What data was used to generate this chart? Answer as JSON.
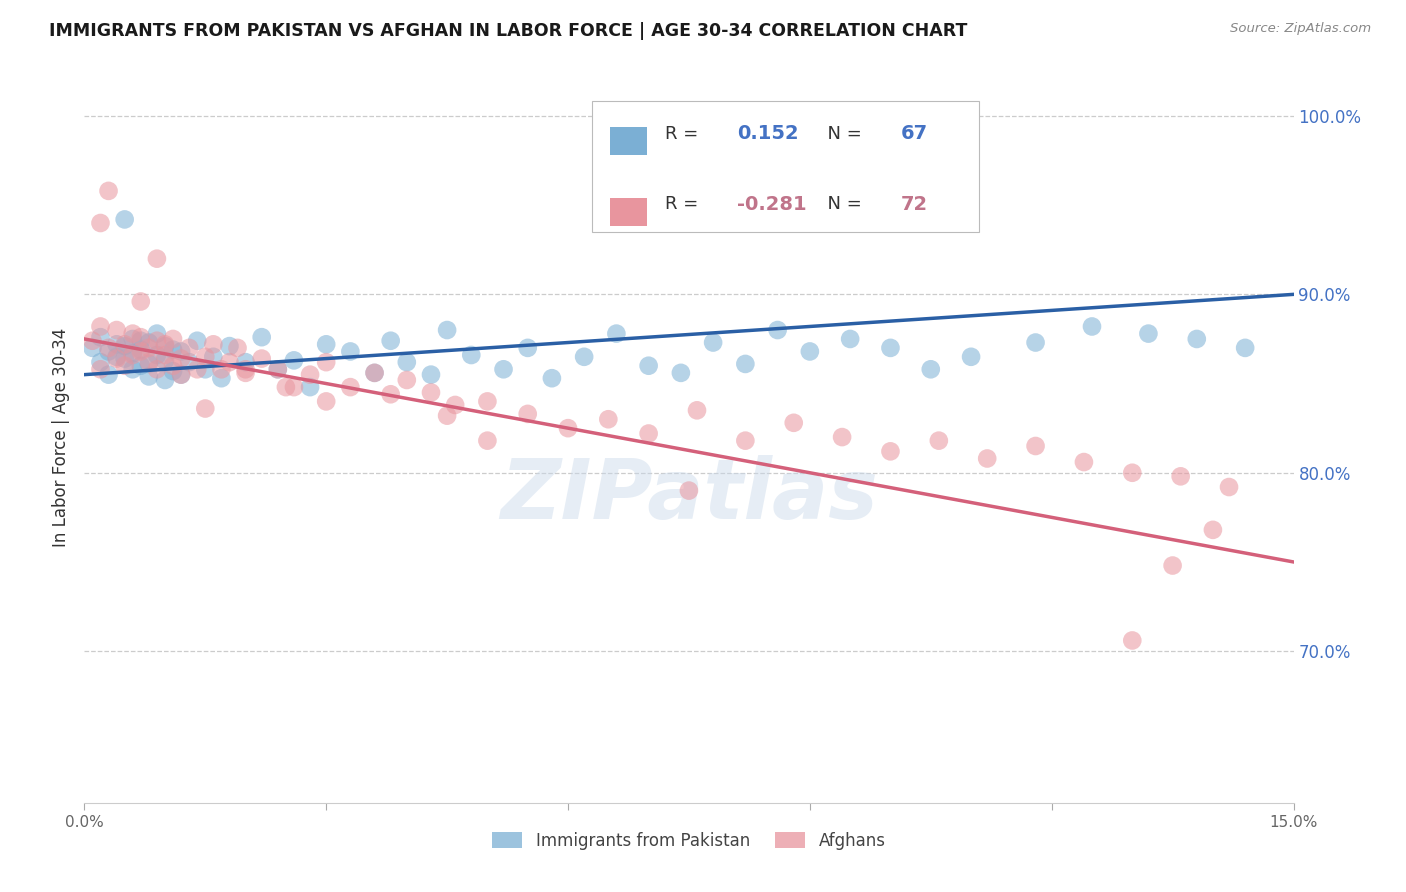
{
  "title": "IMMIGRANTS FROM PAKISTAN VS AFGHAN IN LABOR FORCE | AGE 30-34 CORRELATION CHART",
  "source": "Source: ZipAtlas.com",
  "ylabel": "In Labor Force | Age 30-34",
  "xlim": [
    0.0,
    0.15
  ],
  "ylim": [
    0.615,
    1.025
  ],
  "ytick_vals": [
    0.7,
    0.8,
    0.9,
    1.0
  ],
  "ytick_labels": [
    "70.0%",
    "80.0%",
    "90.0%",
    "100.0%"
  ],
  "xtick_vals": [
    0.0,
    0.03,
    0.06,
    0.09,
    0.12,
    0.15
  ],
  "xtick_labels": [
    "0.0%",
    "",
    "",
    "",
    "",
    "15.0%"
  ],
  "pakistan_color": "#7bafd4",
  "afghan_color": "#e8959e",
  "pakistan_line_color": "#2a5fa5",
  "afghan_line_color": "#d4607a",
  "legend_R_pakistan": "0.152",
  "legend_N_pakistan": "67",
  "legend_R_afghan": "-0.281",
  "legend_N_afghan": "72",
  "watermark": "ZIPatlas",
  "background_color": "#ffffff",
  "grid_color": "#cccccc",
  "pakistan_scatter_x": [
    0.001,
    0.002,
    0.002,
    0.003,
    0.003,
    0.004,
    0.004,
    0.005,
    0.005,
    0.006,
    0.006,
    0.006,
    0.007,
    0.007,
    0.007,
    0.008,
    0.008,
    0.008,
    0.009,
    0.009,
    0.01,
    0.01,
    0.01,
    0.011,
    0.011,
    0.012,
    0.012,
    0.013,
    0.014,
    0.015,
    0.016,
    0.017,
    0.018,
    0.02,
    0.022,
    0.024,
    0.026,
    0.028,
    0.03,
    0.033,
    0.036,
    0.038,
    0.04,
    0.043,
    0.045,
    0.048,
    0.052,
    0.055,
    0.058,
    0.062,
    0.066,
    0.07,
    0.074,
    0.078,
    0.082,
    0.086,
    0.09,
    0.095,
    0.1,
    0.105,
    0.11,
    0.118,
    0.125,
    0.132,
    0.138,
    0.144,
    0.005
  ],
  "pakistan_scatter_y": [
    0.87,
    0.876,
    0.862,
    0.868,
    0.855,
    0.872,
    0.865,
    0.864,
    0.871,
    0.858,
    0.867,
    0.875,
    0.86,
    0.869,
    0.874,
    0.854,
    0.861,
    0.873,
    0.866,
    0.878,
    0.852,
    0.863,
    0.871,
    0.857,
    0.869,
    0.855,
    0.868,
    0.862,
    0.874,
    0.858,
    0.865,
    0.853,
    0.871,
    0.862,
    0.876,
    0.858,
    0.863,
    0.848,
    0.872,
    0.868,
    0.856,
    0.874,
    0.862,
    0.855,
    0.88,
    0.866,
    0.858,
    0.87,
    0.853,
    0.865,
    0.878,
    0.86,
    0.856,
    0.873,
    0.861,
    0.88,
    0.868,
    0.875,
    0.87,
    0.858,
    0.865,
    0.873,
    0.882,
    0.878,
    0.875,
    0.87,
    0.942
  ],
  "afghan_scatter_x": [
    0.001,
    0.002,
    0.002,
    0.003,
    0.004,
    0.004,
    0.005,
    0.005,
    0.006,
    0.006,
    0.007,
    0.007,
    0.008,
    0.008,
    0.009,
    0.009,
    0.01,
    0.01,
    0.011,
    0.011,
    0.012,
    0.013,
    0.014,
    0.015,
    0.016,
    0.017,
    0.018,
    0.019,
    0.02,
    0.022,
    0.024,
    0.026,
    0.028,
    0.03,
    0.033,
    0.036,
    0.038,
    0.04,
    0.043,
    0.046,
    0.05,
    0.055,
    0.06,
    0.065,
    0.07,
    0.076,
    0.082,
    0.088,
    0.094,
    0.1,
    0.106,
    0.112,
    0.118,
    0.124,
    0.13,
    0.136,
    0.142,
    0.002,
    0.003,
    0.007,
    0.009,
    0.012,
    0.015,
    0.02,
    0.025,
    0.03,
    0.045,
    0.05,
    0.075,
    0.13,
    0.14,
    0.135
  ],
  "afghan_scatter_y": [
    0.874,
    0.882,
    0.858,
    0.87,
    0.88,
    0.864,
    0.872,
    0.86,
    0.878,
    0.866,
    0.868,
    0.876,
    0.862,
    0.87,
    0.874,
    0.858,
    0.866,
    0.872,
    0.86,
    0.875,
    0.864,
    0.87,
    0.858,
    0.865,
    0.872,
    0.858,
    0.862,
    0.87,
    0.856,
    0.864,
    0.858,
    0.848,
    0.855,
    0.862,
    0.848,
    0.856,
    0.844,
    0.852,
    0.845,
    0.838,
    0.84,
    0.833,
    0.825,
    0.83,
    0.822,
    0.835,
    0.818,
    0.828,
    0.82,
    0.812,
    0.818,
    0.808,
    0.815,
    0.806,
    0.8,
    0.798,
    0.792,
    0.94,
    0.958,
    0.896,
    0.92,
    0.855,
    0.836,
    0.858,
    0.848,
    0.84,
    0.832,
    0.818,
    0.79,
    0.706,
    0.768,
    0.748
  ]
}
